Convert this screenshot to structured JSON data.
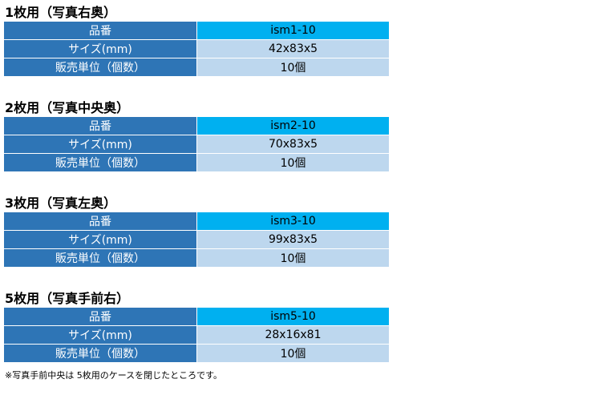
{
  "sections": [
    {
      "heading": "1枚用（写真右奥）",
      "product_no_label": "品番",
      "product_no": "ism1-10",
      "size_label": "サイズ(mm)",
      "size": "42x83x5",
      "unit_label": "販売単位（個数）",
      "unit": "10個"
    },
    {
      "heading": "2枚用（写真中央奥）",
      "product_no_label": "品番",
      "product_no": "ism2-10",
      "size_label": "サイズ(mm)",
      "size": "70x83x5",
      "unit_label": "販売単位（個数）",
      "unit": "10個"
    },
    {
      "heading": "3枚用（写真左奥）",
      "product_no_label": "品番",
      "product_no": "ism3-10",
      "size_label": "サイズ(mm)",
      "size": "99x83x5",
      "unit_label": "販売単位（個数）",
      "unit": "10個"
    },
    {
      "heading": "5枚用（写真手前右）",
      "product_no_label": "品番",
      "product_no": "ism5-10",
      "size_label": "サイズ(mm)",
      "size": "28x16x81",
      "unit_label": "販売単位（個数）",
      "unit": "10個"
    }
  ],
  "note": "※写真手前中央は 5枚用のケースを閉じたところです。",
  "colors": {
    "label_bg": "#2e75b6",
    "product_no_bg": "#00b0f0",
    "value_bg": "#bdd7ee"
  }
}
